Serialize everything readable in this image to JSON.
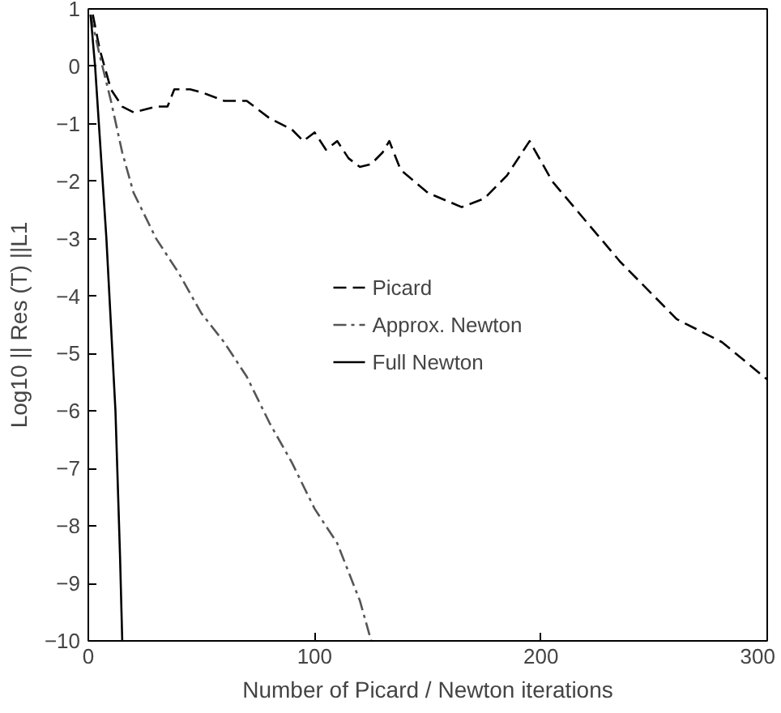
{
  "chart_data": {
    "type": "line",
    "xlabel": "Number of Picard / Newton iterations",
    "ylabel": "Log10 || Res (T) ||L1",
    "xlim": [
      0,
      300
    ],
    "ylim": [
      -10,
      1
    ],
    "xticks": [
      0,
      100,
      200,
      300
    ],
    "yticks": [
      -10,
      -9,
      -8,
      -7,
      -6,
      -5,
      -4,
      -3,
      -2,
      -1,
      0,
      1
    ],
    "grid": false,
    "legend": "center",
    "series": [
      {
        "name": "Picard",
        "color": "#000000",
        "line_style": "dashed",
        "x": [
          2,
          5,
          10,
          15,
          20,
          30,
          35,
          38,
          45,
          50,
          60,
          70,
          80,
          90,
          95,
          100,
          105,
          110,
          115,
          120,
          125,
          130,
          133,
          138,
          150,
          165,
          175,
          185,
          195,
          205,
          220,
          235,
          250,
          260,
          280,
          300
        ],
        "values": [
          0.9,
          0.3,
          -0.4,
          -0.7,
          -0.8,
          -0.7,
          -0.7,
          -0.4,
          -0.4,
          -0.45,
          -0.6,
          -0.6,
          -0.9,
          -1.1,
          -1.3,
          -1.15,
          -1.45,
          -1.3,
          -1.6,
          -1.75,
          -1.7,
          -1.5,
          -1.3,
          -1.8,
          -2.2,
          -2.45,
          -2.3,
          -1.9,
          -1.3,
          -2.0,
          -2.7,
          -3.4,
          -4.0,
          -4.4,
          -4.8,
          -5.45
        ]
      },
      {
        "name": "Approx. Newton",
        "color": "#555555",
        "line_style": "dashdot",
        "x": [
          1,
          5,
          10,
          15,
          20,
          30,
          40,
          50,
          60,
          70,
          80,
          90,
          100,
          110,
          120,
          125
        ],
        "values": [
          0.9,
          0.2,
          -0.6,
          -1.5,
          -2.2,
          -3.0,
          -3.6,
          -4.3,
          -4.8,
          -5.4,
          -6.2,
          -6.9,
          -7.7,
          -8.3,
          -9.3,
          -10
        ]
      },
      {
        "name": "Full Newton",
        "color": "#000000",
        "line_style": "solid",
        "x": [
          1,
          3,
          8,
          12,
          14,
          15
        ],
        "values": [
          0.9,
          0,
          -3,
          -6,
          -8.5,
          -10
        ]
      }
    ]
  }
}
